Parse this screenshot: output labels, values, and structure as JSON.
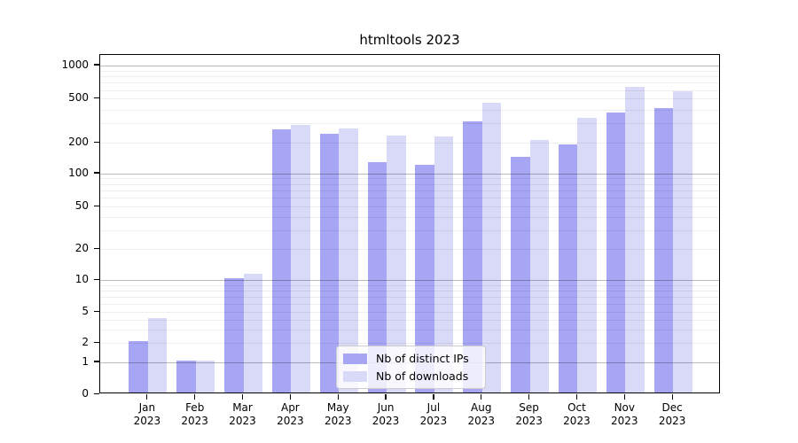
{
  "chart_data": {
    "type": "bar",
    "title": "htmltools 2023",
    "categories": [
      "Jan",
      "Feb",
      "Mar",
      "Apr",
      "May",
      "Jun",
      "Jul",
      "Aug",
      "Sep",
      "Oct",
      "Nov",
      "Dec"
    ],
    "category_year": "2023",
    "series": [
      {
        "name": "Nb of distinct IPs",
        "color": "#a6a6f5",
        "values": [
          2,
          1,
          10,
          255,
          235,
          125,
          118,
          300,
          140,
          185,
          360,
          395
        ]
      },
      {
        "name": "Nb of downloads",
        "color": "#d9d9f8",
        "values": [
          4,
          1,
          11,
          280,
          260,
          225,
          220,
          440,
          205,
          325,
          620,
          565
        ]
      }
    ],
    "y_ticks": [
      0,
      1,
      2,
      5,
      10,
      20,
      50,
      100,
      200,
      500,
      1000
    ],
    "ylim": [
      0,
      1260
    ],
    "y_scale": "pseudo-log (linear 0-1, logarithmic above)",
    "grid": "horizontal minor and major gridlines, drawn over bars",
    "legend_position": "inside plot, lower center"
  }
}
